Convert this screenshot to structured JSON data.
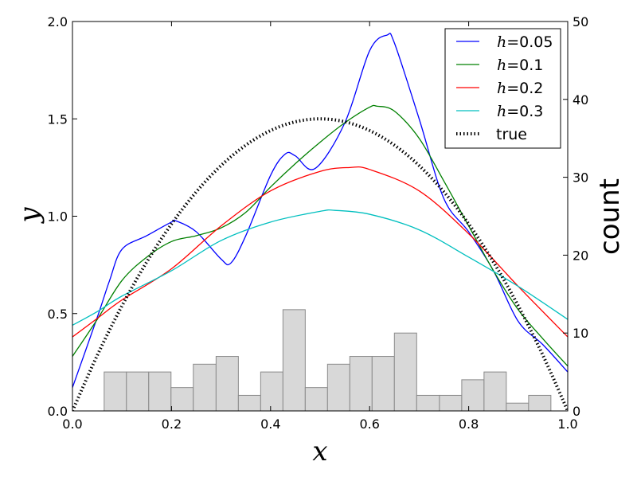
{
  "chart_data": {
    "type": "line",
    "title": "",
    "xlabel": "x",
    "ylabel": "y",
    "ylabel_right": "count",
    "xlim": [
      0.0,
      1.0
    ],
    "ylim": [
      0.0,
      2.0
    ],
    "ylim_right": [
      0,
      50
    ],
    "xticks": [
      "0.0",
      "0.2",
      "0.4",
      "0.6",
      "0.8",
      "1.0"
    ],
    "yticks": [
      "0.0",
      "0.5",
      "1.0",
      "1.5",
      "2.0"
    ],
    "yticks_right": [
      "0",
      "10",
      "20",
      "30",
      "40",
      "50"
    ],
    "grid": false,
    "legend_placement": "top-right",
    "histogram": {
      "bin_edges": [
        0.064,
        0.109,
        0.154,
        0.199,
        0.244,
        0.29,
        0.335,
        0.38,
        0.425,
        0.47,
        0.515,
        0.56,
        0.605,
        0.65,
        0.695,
        0.741,
        0.786,
        0.831,
        0.876,
        0.921,
        0.966
      ],
      "counts": [
        5,
        5,
        5,
        3,
        6,
        7,
        2,
        5,
        13,
        3,
        6,
        7,
        7,
        10,
        2,
        2,
        4,
        5,
        1,
        2
      ],
      "fill": "#d8d8d8",
      "edge": "#8a8a8a"
    },
    "series": [
      {
        "name": "h=0.05",
        "h_label": "h",
        "value_label": "=0.05",
        "color": "#0000ff",
        "style": "solid",
        "x": [
          0,
          0.05,
          0.075,
          0.1,
          0.15,
          0.2,
          0.21,
          0.25,
          0.3,
          0.32,
          0.35,
          0.4,
          0.43,
          0.45,
          0.49,
          0.55,
          0.6,
          0.635,
          0.65,
          0.7,
          0.75,
          0.8,
          0.85,
          0.9,
          0.95,
          1.0
        ],
        "y": [
          0.12,
          0.48,
          0.67,
          0.83,
          0.9,
          0.97,
          0.975,
          0.92,
          0.78,
          0.76,
          0.9,
          1.21,
          1.32,
          1.31,
          1.245,
          1.48,
          1.85,
          1.93,
          1.89,
          1.5,
          1.09,
          0.92,
          0.72,
          0.46,
          0.34,
          0.2
        ]
      },
      {
        "name": "h=0.1",
        "h_label": "h",
        "value_label": "=0.1",
        "color": "#008000",
        "style": "solid",
        "x": [
          0,
          0.05,
          0.1,
          0.15,
          0.2,
          0.25,
          0.3,
          0.35,
          0.4,
          0.45,
          0.5,
          0.55,
          0.6,
          0.615,
          0.65,
          0.7,
          0.75,
          0.8,
          0.85,
          0.9,
          0.95,
          1.0
        ],
        "y": [
          0.28,
          0.47,
          0.67,
          0.79,
          0.87,
          0.9,
          0.94,
          1.02,
          1.15,
          1.27,
          1.38,
          1.48,
          1.56,
          1.565,
          1.54,
          1.4,
          1.18,
          0.95,
          0.72,
          0.52,
          0.37,
          0.23
        ]
      },
      {
        "name": "h=0.2",
        "h_label": "h",
        "value_label": "=0.2",
        "color": "#ff0000",
        "style": "solid",
        "x": [
          0,
          0.05,
          0.1,
          0.2,
          0.3,
          0.4,
          0.5,
          0.56,
          0.6,
          0.7,
          0.8,
          0.9,
          1.0
        ],
        "y": [
          0.38,
          0.475,
          0.57,
          0.73,
          0.95,
          1.13,
          1.23,
          1.25,
          1.24,
          1.13,
          0.91,
          0.64,
          0.38
        ]
      },
      {
        "name": "h=0.3",
        "h_label": "h",
        "value_label": "=0.3",
        "color": "#00bfbf",
        "style": "solid",
        "x": [
          0,
          0.05,
          0.1,
          0.2,
          0.3,
          0.4,
          0.5,
          0.53,
          0.6,
          0.7,
          0.8,
          0.9,
          1.0
        ],
        "y": [
          0.44,
          0.51,
          0.59,
          0.72,
          0.875,
          0.97,
          1.025,
          1.03,
          1.01,
          0.93,
          0.79,
          0.64,
          0.47
        ]
      },
      {
        "name": "true",
        "h_label": "",
        "value_label": "true",
        "color": "#000000",
        "style": "dotted",
        "x": [
          0,
          0.05,
          0.1,
          0.15,
          0.2,
          0.25,
          0.3,
          0.35,
          0.4,
          0.45,
          0.5,
          0.55,
          0.6,
          0.65,
          0.7,
          0.75,
          0.8,
          0.85,
          0.9,
          0.95,
          1.0
        ],
        "y": [
          0,
          0.285,
          0.54,
          0.765,
          0.96,
          1.125,
          1.26,
          1.365,
          1.44,
          1.485,
          1.5,
          1.485,
          1.44,
          1.365,
          1.26,
          1.125,
          0.96,
          0.765,
          0.54,
          0.285,
          0
        ]
      }
    ]
  }
}
